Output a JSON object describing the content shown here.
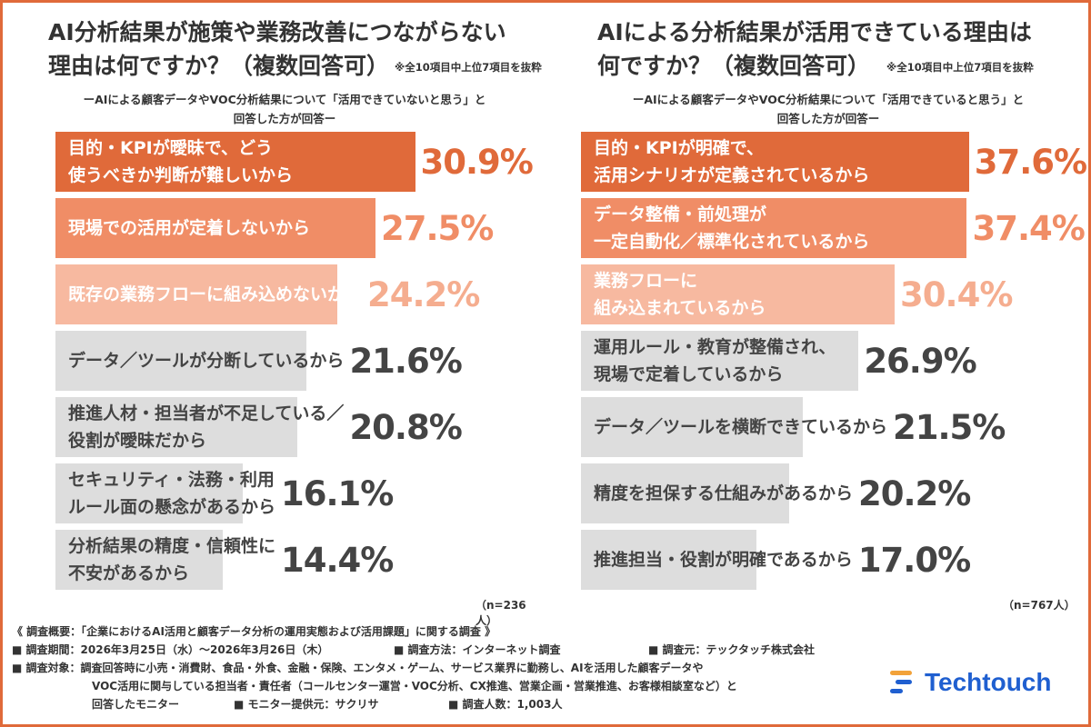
{
  "colors": {
    "border": "#e06a3a",
    "dark": "#e06a3a",
    "mid": "#f08d66",
    "light": "#f7b9a0",
    "gray": "#dddddd",
    "pct_dark": "#e06a3a",
    "pct_mid": "#f08d66",
    "pct_light": "#f5ad8f",
    "pct_gray": "#444444",
    "logo": "#1f5fd0"
  },
  "chart_data": [
    {
      "type": "bar",
      "orientation": "horizontal",
      "title": "AI分析結果が施策や業務改善につながらない理由は何ですか？（複数回答可）",
      "title_line1": "AI分析結果が施策や業務改善につながらない",
      "title_line2": "理由は何ですか？（複数回答可）",
      "note": "※全10項目中上位7項目を抜粋",
      "subtitle_line1": "ーAIによる顧客データやVOC分析結果について「活用できていないと思う」と",
      "subtitle_line2": "回答した方が回答ー",
      "categories": [
        "目的・KPIが曖昧で、どう\n使うべきか判断が難しいから",
        "現場での活用が定着しないから",
        "既存の業務フローに組み込めないから",
        "データ／ツールが分断しているから",
        "推進人材・担当者が不足している／\n役割が曖昧だから",
        "セキュリティ・法務・利用\nルール面の懸念があるから",
        "分析結果の精度・信頼性に\n不安があるから"
      ],
      "values": [
        30.9,
        27.5,
        24.2,
        21.6,
        20.8,
        16.1,
        14.4
      ],
      "value_labels": [
        "30.9%",
        "27.5%",
        "24.2%",
        "21.6%",
        "20.8%",
        "16.1%",
        "14.4%"
      ],
      "n": "（n=236人）"
    },
    {
      "type": "bar",
      "orientation": "horizontal",
      "title": "AIによる分析結果が活用できている理由は何ですか？（複数回答可）",
      "title_line1": "AIによる分析結果が活用できている理由は",
      "title_line2": "何ですか？（複数回答可）",
      "note": "※全10項目中上位7項目を抜粋",
      "subtitle_line1": "ーAIによる顧客データやVOC分析結果について「活用できていると思う」と",
      "subtitle_line2": "回答した方が回答ー",
      "categories": [
        "目的・KPIが明確で、\n活用シナリオが定義されているから",
        "データ整備・前処理が\n一定自動化／標準化されているから",
        "業務フローに\n組み込まれているから",
        "運用ルール・教育が整備され、\n現場で定着しているから",
        "データ／ツールを横断できているから",
        "精度を担保する仕組みがあるから",
        "推進担当・役割が明確であるから"
      ],
      "values": [
        37.6,
        37.4,
        30.4,
        26.9,
        21.5,
        20.2,
        17.0
      ],
      "value_labels": [
        "37.6%",
        "37.4%",
        "30.4%",
        "26.9%",
        "21.5%",
        "20.2%",
        "17.0%"
      ],
      "n": "（n=767人）"
    }
  ],
  "footer": {
    "title": "《 調査概要：「企業におけるAI活用と顧客データ分析の運用実態および活用課題」に関する調査 》",
    "period": "■ 調査期間：2026年3月25日（水）〜2026年3月26日（木）",
    "method": "■ 調査方法：インターネット調査",
    "source": "■ 調査元：テックタッチ株式会社",
    "target_line1": "■ 調査対象：調査回答時に小売・消費財、食品・外食、金融・保険、エンタメ・ゲーム、サービス業界に勤務し、AIを活用した顧客データや",
    "target_line2": "VOC活用に関与している担当者・責任者（コールセンター運営・VOC分析、CX推進、営業企画・営業推進、お客様相談室など）と",
    "target_line3": "回答したモニター",
    "provider": "■ モニター提供元：サクリサ",
    "count": "■ 調査人数：1,003人"
  },
  "logo": {
    "text": "Techtouch",
    "icon": "techtouch-logo-icon"
  }
}
